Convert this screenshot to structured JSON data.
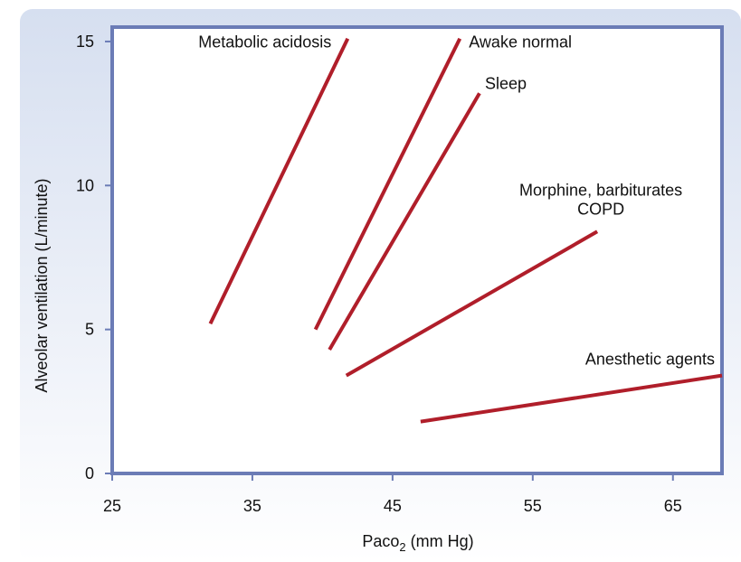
{
  "chart_data": {
    "type": "line",
    "title": "",
    "xlabel_main": "Paco",
    "xlabel_sub": "2",
    "xlabel_unit": " (mm Hg)",
    "ylabel": "Alveolar ventilation (L/minute)",
    "xlim": [
      25,
      68.5
    ],
    "ylim": [
      0,
      15.5
    ],
    "xticks": [
      25,
      35,
      45,
      55,
      65
    ],
    "yticks": [
      0,
      5,
      10,
      15
    ],
    "grid": false,
    "line_color": "#b01e2a",
    "axis_color": "#6b7cb6",
    "series": [
      {
        "name": "Metabolic acidosis",
        "points": [
          [
            32.0,
            5.2
          ],
          [
            41.8,
            15.1
          ]
        ]
      },
      {
        "name": "Awake normal",
        "points": [
          [
            39.5,
            5.0
          ],
          [
            49.8,
            15.1
          ]
        ]
      },
      {
        "name": "Sleep",
        "points": [
          [
            40.5,
            4.3
          ],
          [
            51.2,
            13.2
          ]
        ]
      },
      {
        "name": "Morphine, barbiturates|COPD",
        "points": [
          [
            41.7,
            3.4
          ],
          [
            59.6,
            8.4
          ]
        ]
      },
      {
        "name": "Anesthetic agents",
        "points": [
          [
            47.0,
            1.8
          ],
          [
            68.5,
            3.4
          ]
        ]
      }
    ]
  }
}
